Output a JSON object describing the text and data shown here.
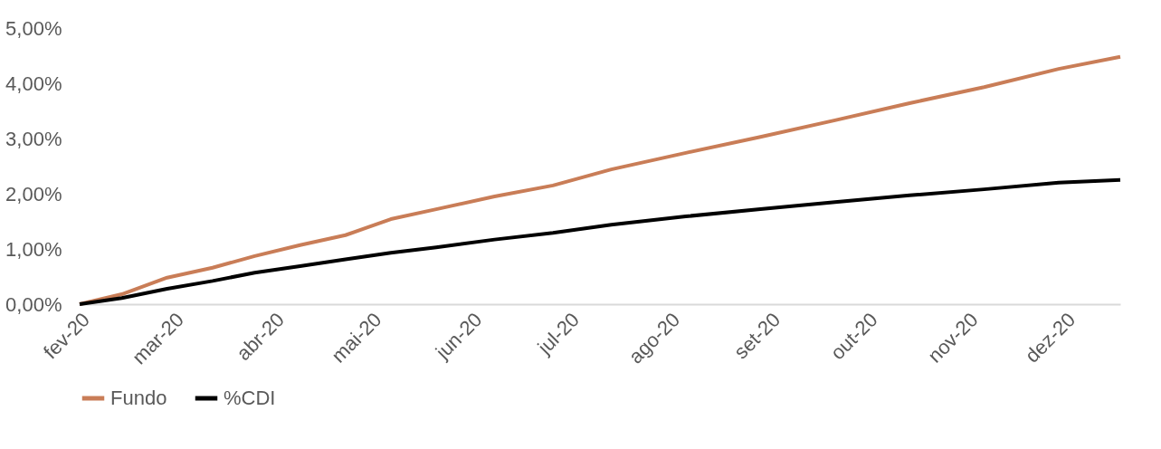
{
  "chart_data": {
    "type": "line",
    "x": [
      "2020-02-01",
      "2020-02-14",
      "2020-02-28",
      "2020-03-13",
      "2020-03-26",
      "2020-04-09",
      "2020-04-23",
      "2020-05-07",
      "2020-05-21",
      "2020-06-08",
      "2020-06-26",
      "2020-07-14",
      "2020-08-06",
      "2020-08-29",
      "2020-09-21",
      "2020-10-14",
      "2020-11-06",
      "2020-11-29",
      "2020-12-18"
    ],
    "series": [
      {
        "name": "Fundo",
        "color": "#c97d57",
        "values": [
          0,
          0.18,
          0.48,
          0.66,
          0.87,
          1.07,
          1.25,
          1.54,
          1.72,
          1.95,
          2.15,
          2.44,
          2.74,
          3.03,
          3.33,
          3.64,
          3.93,
          4.26,
          4.48
        ]
      },
      {
        "name": "%CDI",
        "color": "#000000",
        "values": [
          0,
          0.11,
          0.28,
          0.42,
          0.57,
          0.69,
          0.81,
          0.93,
          1.03,
          1.17,
          1.29,
          1.44,
          1.59,
          1.72,
          1.85,
          1.97,
          2.08,
          2.2,
          2.25
        ]
      }
    ],
    "xlim": [
      "2020-02-01",
      "2020-12-18"
    ],
    "xticks": [
      {
        "value": "2020-02-01",
        "label": "fev-20"
      },
      {
        "value": "2020-03-01",
        "label": "mar-20"
      },
      {
        "value": "2020-04-01",
        "label": "abr-20"
      },
      {
        "value": "2020-05-01",
        "label": "mai-20"
      },
      {
        "value": "2020-06-01",
        "label": "jun-20"
      },
      {
        "value": "2020-07-01",
        "label": "jul-20"
      },
      {
        "value": "2020-08-01",
        "label": "ago-20"
      },
      {
        "value": "2020-09-01",
        "label": "set-20"
      },
      {
        "value": "2020-10-01",
        "label": "out-20"
      },
      {
        "value": "2020-11-01",
        "label": "nov-20"
      },
      {
        "value": "2020-12-01",
        "label": "dez-20"
      }
    ],
    "ylim": [
      0,
      5
    ],
    "yticks": [
      {
        "value": 0,
        "label": "0,00%"
      },
      {
        "value": 1,
        "label": "1,00%"
      },
      {
        "value": 2,
        "label": "2,00%"
      },
      {
        "value": 3,
        "label": "3,00%"
      },
      {
        "value": 4,
        "label": "4,00%"
      },
      {
        "value": 5,
        "label": "5,00%"
      }
    ],
    "grid": false,
    "legend": "bottom",
    "marker": "none",
    "line_style": "solid"
  }
}
